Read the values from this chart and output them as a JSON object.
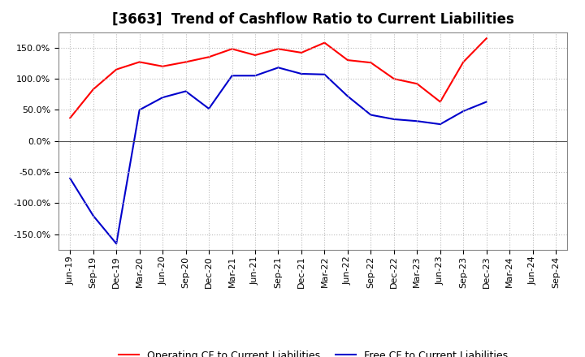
{
  "title": "[3663]  Trend of Cashflow Ratio to Current Liabilities",
  "x_labels": [
    "Jun-19",
    "Sep-19",
    "Dec-19",
    "Mar-20",
    "Jun-20",
    "Sep-20",
    "Dec-20",
    "Mar-21",
    "Jun-21",
    "Sep-21",
    "Dec-21",
    "Mar-22",
    "Jun-22",
    "Sep-22",
    "Dec-22",
    "Mar-23",
    "Jun-23",
    "Sep-23",
    "Dec-23",
    "Mar-24",
    "Jun-24",
    "Sep-24"
  ],
  "operating_cf": [
    37,
    83,
    115,
    127,
    120,
    127,
    135,
    148,
    138,
    148,
    142,
    158,
    130,
    126,
    100,
    92,
    63,
    127,
    165,
    null,
    null,
    null
  ],
  "free_cf": [
    -60,
    -120,
    -165,
    50,
    70,
    80,
    52,
    105,
    105,
    118,
    108,
    107,
    72,
    42,
    35,
    32,
    27,
    48,
    63,
    null,
    null,
    null
  ],
  "operating_color": "#ff0000",
  "free_color": "#0000cc",
  "ylim": [
    -175,
    175
  ],
  "yticks": [
    -150,
    -100,
    -50,
    0,
    50,
    100,
    150
  ],
  "background_color": "#ffffff",
  "grid_color": "#bbbbbb",
  "legend_labels": [
    "Operating CF to Current Liabilities",
    "Free CF to Current Liabilities"
  ],
  "title_fontsize": 12,
  "tick_fontsize": 8,
  "legend_fontsize": 9
}
